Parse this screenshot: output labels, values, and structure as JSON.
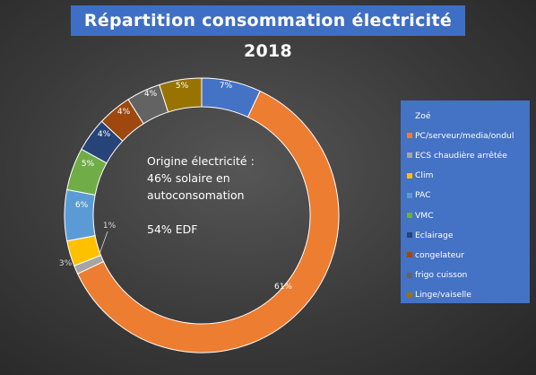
{
  "chart_data": {
    "type": "pie",
    "title": "Répartition consommation électricité 2018",
    "donut": true,
    "legend_position": "right",
    "categories": [
      "Zoé",
      "PC/serveur/media/ondul",
      "ECS chaudière arrêtée",
      "Clim",
      "PAC",
      "VMC",
      "Eclairage",
      "congelateur",
      "frigo cuisson",
      "Linge/vaiselle"
    ],
    "values": [
      7,
      61,
      1,
      3,
      6,
      5,
      4,
      4,
      4,
      5
    ],
    "data_labels": [
      "7%",
      "61%",
      "1%",
      "3%",
      "6%",
      "5%",
      "4%",
      "4%",
      "4%",
      "5%"
    ],
    "colors": [
      "#4472c4",
      "#ed7d31",
      "#a5a5a5",
      "#ffc000",
      "#5b9bd5",
      "#70ad47",
      "#264478",
      "#9e480e",
      "#636363",
      "#997300"
    ]
  },
  "center_note": {
    "line1": "Origine électricité :",
    "line2": "46% solaire en",
    "line3": "autoconsomation",
    "line4": "54% EDF"
  }
}
